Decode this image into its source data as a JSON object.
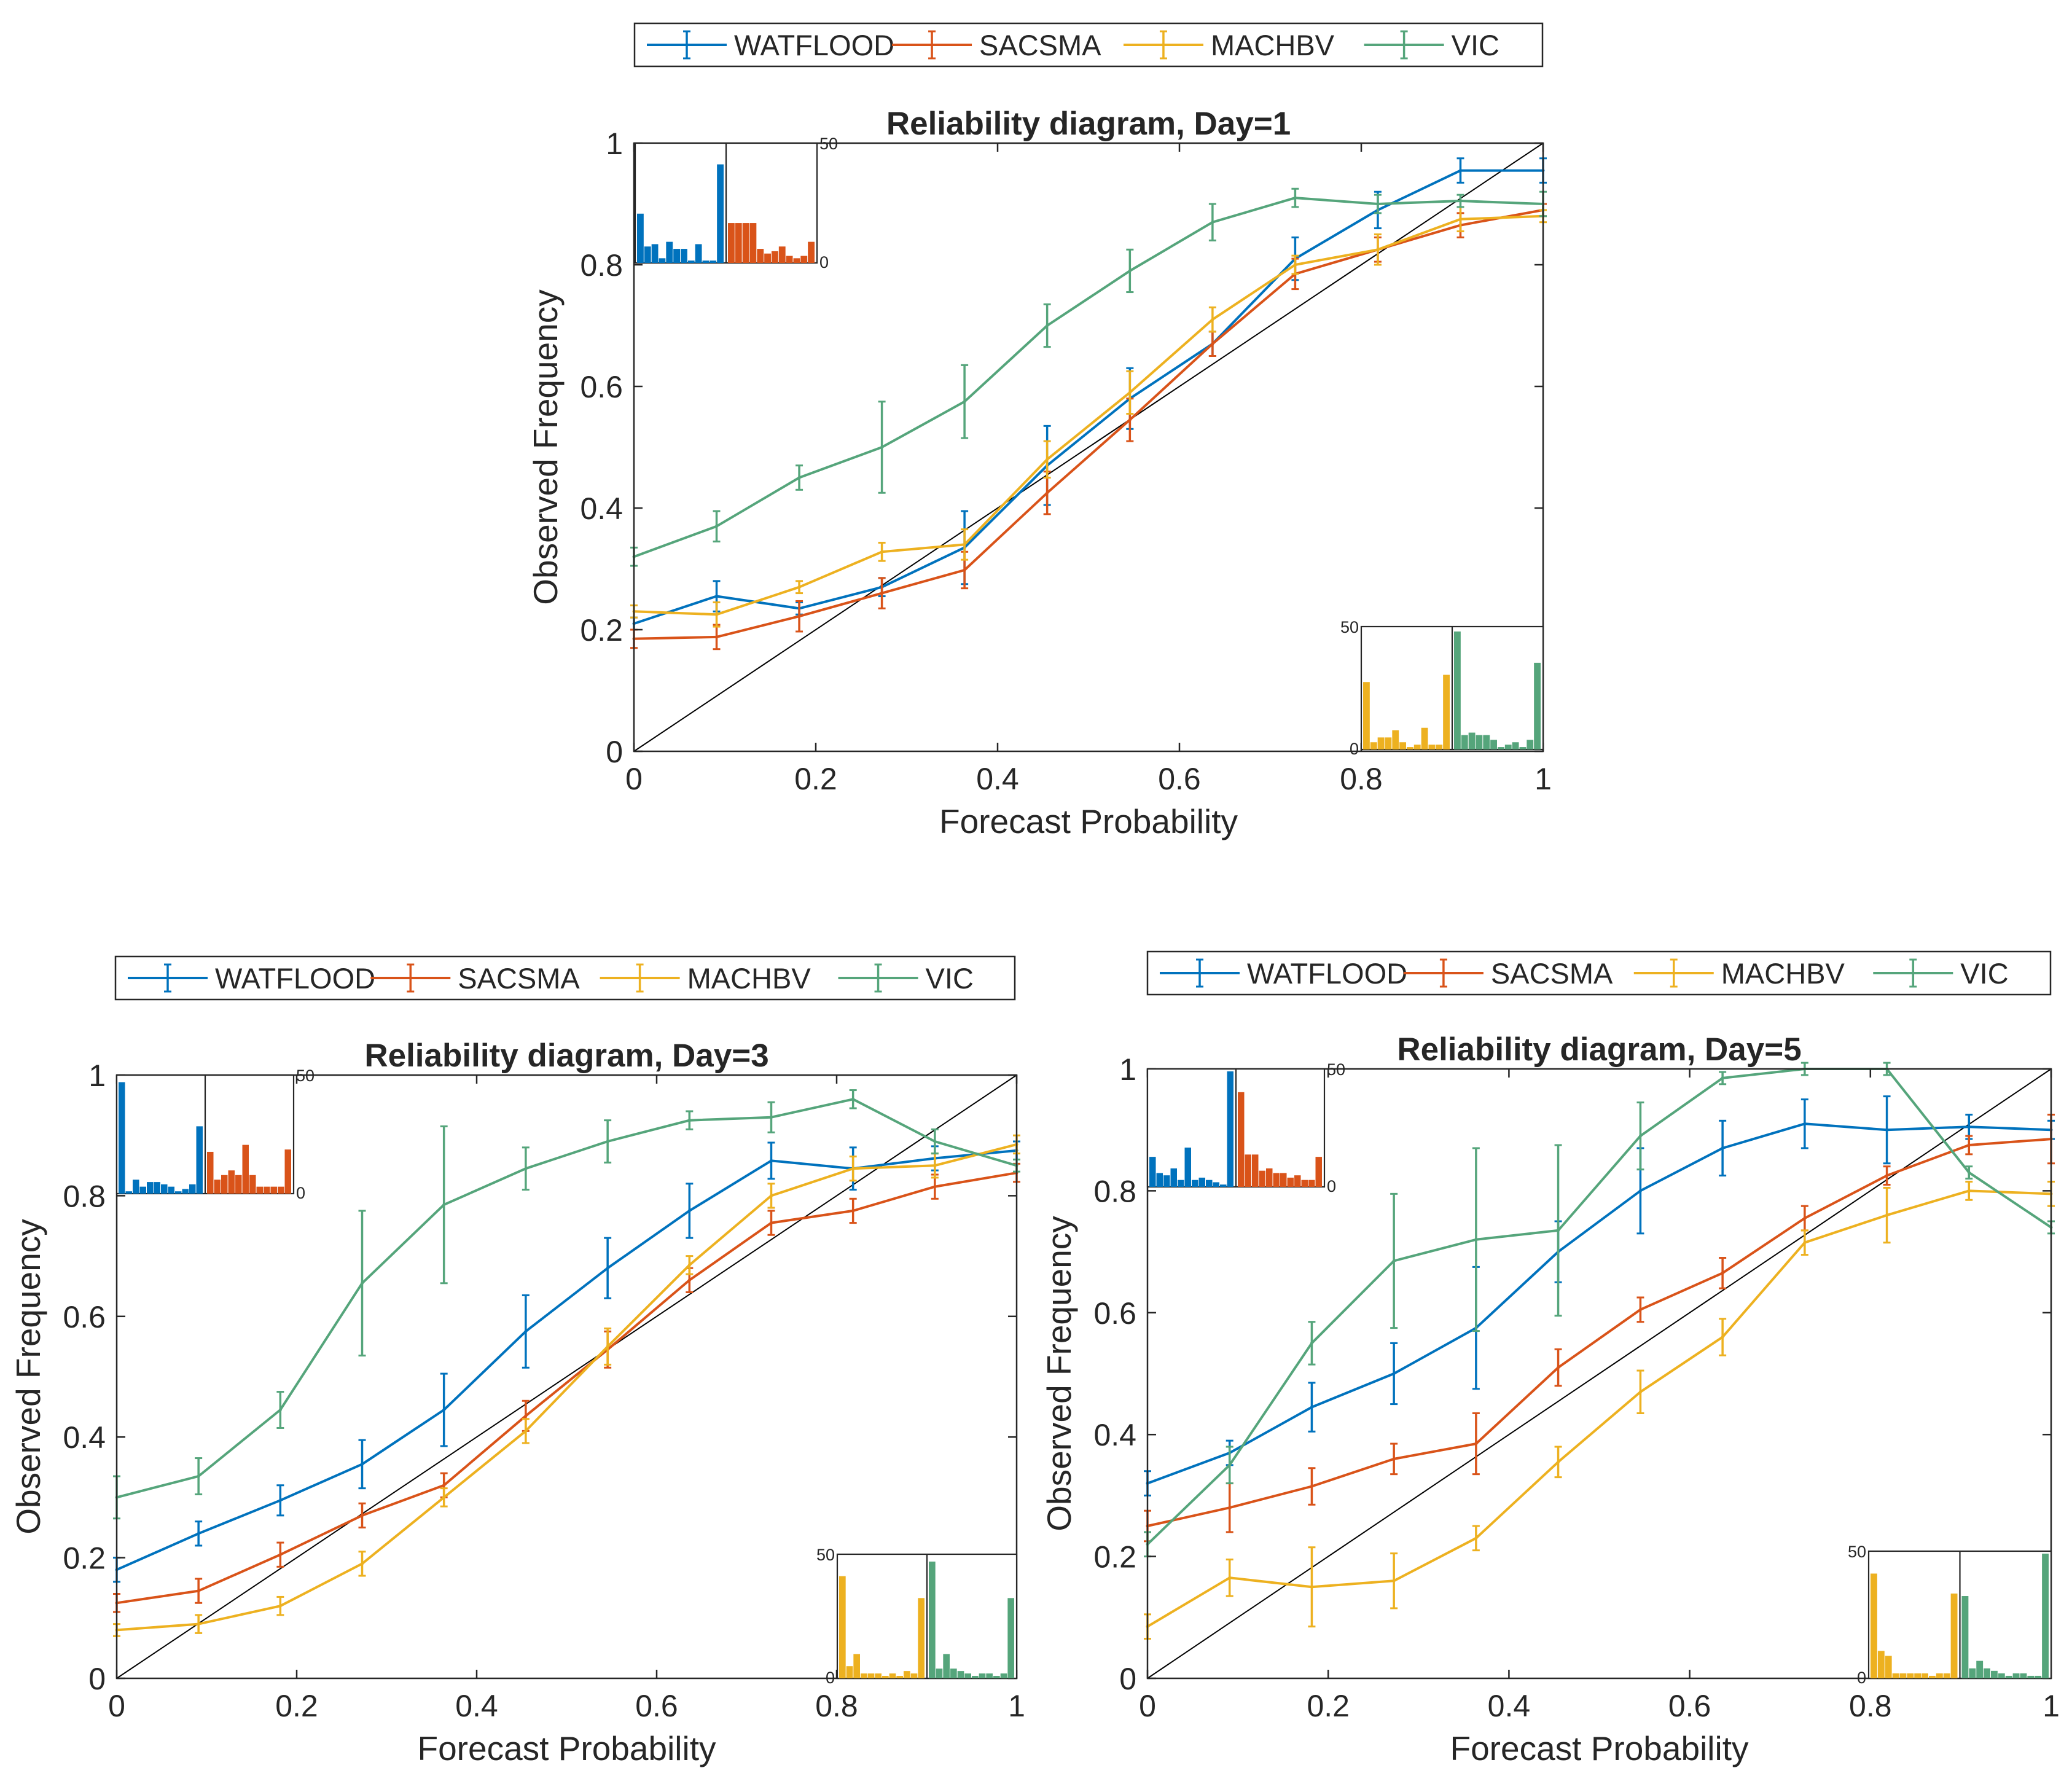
{
  "colors": {
    "WATFLOOD": "#0072BD",
    "SACSMA": "#D95319",
    "MACHBV": "#EDB120",
    "VIC": "#55A57B",
    "diagonal": "#000000"
  },
  "chart_data": [
    {
      "type": "line",
      "title": "Reliability diagram, Day=1",
      "xlabel": "Forecast Probability",
      "ylabel": "Observed Frequency",
      "xlim": [
        0,
        1
      ],
      "ylim": [
        0,
        1
      ],
      "xticks": [
        "0",
        "0.2",
        "0.4",
        "0.6",
        "0.8",
        "1"
      ],
      "yticks": [
        "0",
        "0.2",
        "0.4",
        "0.6",
        "0.8",
        "1"
      ],
      "legend": [
        "WATFLOOD",
        "SACSMA",
        "MACHBV",
        "VIC"
      ],
      "x": [
        0,
        0.0909,
        0.1818,
        0.2727,
        0.3636,
        0.4545,
        0.5455,
        0.6364,
        0.7273,
        0.8182,
        0.9091,
        1.0
      ],
      "series": [
        {
          "name": "WATFLOOD",
          "values": [
            0.21,
            0.255,
            0.235,
            0.27,
            0.335,
            0.47,
            0.58,
            0.67,
            0.81,
            0.89,
            0.955,
            0.955
          ],
          "err": [
            0.01,
            0.025,
            0.01,
            0.015,
            0.06,
            0.065,
            0.05,
            0.02,
            0.035,
            0.03,
            0.02,
            0.02
          ]
        },
        {
          "name": "SACSMA",
          "values": [
            0.185,
            0.188,
            0.222,
            0.26,
            0.298,
            0.425,
            0.545,
            0.67,
            0.785,
            0.825,
            0.865,
            0.89
          ],
          "err": [
            0.015,
            0.02,
            0.025,
            0.025,
            0.03,
            0.035,
            0.035,
            0.02,
            0.025,
            0.02,
            0.02,
            0.01
          ]
        },
        {
          "name": "MACHBV",
          "values": [
            0.23,
            0.225,
            0.27,
            0.328,
            0.34,
            0.48,
            0.59,
            0.71,
            0.8,
            0.825,
            0.875,
            0.88
          ],
          "err": [
            0.01,
            0.02,
            0.01,
            0.015,
            0.025,
            0.03,
            0.035,
            0.02,
            0.015,
            0.025,
            0.02,
            0.01
          ]
        },
        {
          "name": "VIC",
          "values": [
            0.32,
            0.37,
            0.45,
            0.5,
            0.575,
            0.7,
            0.79,
            0.87,
            0.91,
            0.9,
            0.905,
            0.9
          ],
          "err": [
            0.015,
            0.025,
            0.02,
            0.075,
            0.06,
            0.035,
            0.035,
            0.03,
            0.015,
            0.015,
            0.01,
            0.02
          ]
        }
      ],
      "inset_histograms": [
        {
          "name": "WATFLOOD",
          "max": 50,
          "counts": [
            21,
            7,
            8,
            2,
            9,
            6,
            6,
            1,
            8,
            1,
            1,
            42
          ]
        },
        {
          "name": "SACSMA",
          "max": 50,
          "counts": [
            17,
            17,
            17,
            17,
            6,
            4,
            5,
            7,
            3,
            2,
            3,
            9
          ]
        },
        {
          "name": "MACHBV",
          "max": 50,
          "counts": [
            28,
            3,
            5,
            5,
            8,
            3,
            1,
            2,
            9,
            2,
            2,
            31
          ]
        },
        {
          "name": "VIC",
          "max": 50,
          "counts": [
            49,
            6,
            7,
            6,
            6,
            4,
            1,
            2,
            3,
            1,
            4,
            36
          ]
        }
      ]
    },
    {
      "type": "line",
      "title": "Reliability diagram, Day=3",
      "xlabel": "Forecast Probability",
      "ylabel": "Observed Frequency",
      "xlim": [
        0,
        1
      ],
      "ylim": [
        0,
        1
      ],
      "xticks": [
        "0",
        "0.2",
        "0.4",
        "0.6",
        "0.8",
        "1"
      ],
      "yticks": [
        "0",
        "0.2",
        "0.4",
        "0.6",
        "0.8",
        "1"
      ],
      "legend": [
        "WATFLOOD",
        "SACSMA",
        "MACHBV",
        "VIC"
      ],
      "x": [
        0,
        0.0909,
        0.1818,
        0.2727,
        0.3636,
        0.4545,
        0.5455,
        0.6364,
        0.7273,
        0.8182,
        0.9091,
        1.0
      ],
      "series": [
        {
          "name": "WATFLOOD",
          "values": [
            0.18,
            0.24,
            0.295,
            0.355,
            0.445,
            0.575,
            0.68,
            0.775,
            0.858,
            0.845,
            0.862,
            0.875
          ],
          "err": [
            0.02,
            0.02,
            0.025,
            0.04,
            0.06,
            0.06,
            0.05,
            0.045,
            0.03,
            0.035,
            0.02,
            0.015
          ]
        },
        {
          "name": "SACSMA",
          "values": [
            0.125,
            0.145,
            0.205,
            0.27,
            0.32,
            0.435,
            0.545,
            0.66,
            0.755,
            0.775,
            0.815,
            0.838
          ],
          "err": [
            0.015,
            0.02,
            0.02,
            0.02,
            0.02,
            0.025,
            0.03,
            0.02,
            0.02,
            0.02,
            0.02,
            0.015
          ]
        },
        {
          "name": "MACHBV",
          "values": [
            0.08,
            0.09,
            0.12,
            0.19,
            0.3,
            0.41,
            0.55,
            0.685,
            0.8,
            0.845,
            0.85,
            0.885
          ],
          "err": [
            0.01,
            0.015,
            0.015,
            0.02,
            0.015,
            0.02,
            0.03,
            0.015,
            0.02,
            0.02,
            0.02,
            0.015
          ]
        },
        {
          "name": "VIC",
          "values": [
            0.3,
            0.335,
            0.445,
            0.655,
            0.785,
            0.845,
            0.89,
            0.925,
            0.93,
            0.96,
            0.89,
            0.85
          ],
          "err": [
            0.035,
            0.03,
            0.03,
            0.12,
            0.13,
            0.035,
            0.035,
            0.015,
            0.025,
            0.015,
            0.02,
            0.01
          ]
        }
      ],
      "inset_histograms": [
        {
          "name": "WATFLOOD",
          "max": 50,
          "counts": [
            48,
            1,
            6,
            3,
            5,
            5,
            4,
            3,
            1,
            2,
            4,
            29
          ]
        },
        {
          "name": "SACSMA",
          "max": 50,
          "counts": [
            18,
            6,
            8,
            10,
            8,
            21,
            8,
            3,
            3,
            3,
            3,
            19
          ]
        },
        {
          "name": "MACHBV",
          "max": 50,
          "counts": [
            42,
            5,
            10,
            2,
            2,
            2,
            1,
            2,
            1,
            3,
            2,
            33
          ]
        },
        {
          "name": "VIC",
          "max": 50,
          "counts": [
            48,
            4,
            10,
            4,
            3,
            2,
            1,
            2,
            2,
            1,
            2,
            33
          ]
        }
      ]
    },
    {
      "type": "line",
      "title": "Reliability diagram, Day=5",
      "xlabel": "Forecast Probability",
      "ylabel": "Observed Frequency",
      "xlim": [
        0,
        1
      ],
      "ylim": [
        0,
        1
      ],
      "xticks": [
        "0",
        "0.2",
        "0.4",
        "0.6",
        "0.8",
        "1"
      ],
      "yticks": [
        "0",
        "0.2",
        "0.4",
        "0.6",
        "0.8",
        "1"
      ],
      "legend": [
        "WATFLOOD",
        "SACSMA",
        "MACHBV",
        "VIC"
      ],
      "x": [
        0,
        0.0909,
        0.1818,
        0.2727,
        0.3636,
        0.4545,
        0.5455,
        0.6364,
        0.7273,
        0.8182,
        0.9091,
        1.0
      ],
      "series": [
        {
          "name": "WATFLOOD",
          "values": [
            0.32,
            0.37,
            0.445,
            0.5,
            0.575,
            0.7,
            0.8,
            0.87,
            0.91,
            0.9,
            0.905,
            0.9
          ],
          "err": [
            0.02,
            0.02,
            0.04,
            0.05,
            0.1,
            0.05,
            0.07,
            0.045,
            0.04,
            0.055,
            0.02,
            0.015
          ]
        },
        {
          "name": "SACSMA",
          "values": [
            0.25,
            0.28,
            0.315,
            0.36,
            0.385,
            0.51,
            0.605,
            0.665,
            0.755,
            0.825,
            0.875,
            0.885
          ],
          "err": [
            0.025,
            0.04,
            0.03,
            0.025,
            0.05,
            0.03,
            0.02,
            0.025,
            0.02,
            0.015,
            0.015,
            0.04
          ]
        },
        {
          "name": "MACHBV",
          "values": [
            0.085,
            0.165,
            0.15,
            0.16,
            0.23,
            0.355,
            0.47,
            0.56,
            0.715,
            0.76,
            0.8,
            0.795
          ],
          "err": [
            0.02,
            0.03,
            0.065,
            0.045,
            0.02,
            0.025,
            0.035,
            0.03,
            0.02,
            0.045,
            0.015,
            0.02
          ]
        },
        {
          "name": "VIC",
          "values": [
            0.22,
            0.35,
            0.55,
            0.685,
            0.72,
            0.735,
            0.89,
            0.985,
            1.0,
            1.0,
            0.83,
            0.74
          ],
          "err": [
            0.02,
            0.03,
            0.035,
            0.11,
            0.15,
            0.14,
            0.055,
            0.01,
            0.01,
            0.01,
            0.01,
            0.01
          ]
        }
      ],
      "inset_histograms": [
        {
          "name": "WATFLOOD",
          "max": 50,
          "counts": [
            13,
            6,
            5,
            8,
            3,
            17,
            3,
            4,
            3,
            2,
            1,
            50
          ]
        },
        {
          "name": "SACSMA",
          "max": 50,
          "counts": [
            41,
            14,
            14,
            7,
            8,
            6,
            6,
            4,
            5,
            3,
            3,
            13
          ]
        },
        {
          "name": "MACHBV",
          "max": 50,
          "counts": [
            42,
            11,
            9,
            2,
            2,
            2,
            2,
            2,
            1,
            2,
            2,
            34
          ]
        },
        {
          "name": "VIC",
          "max": 50,
          "counts": [
            33,
            4,
            7,
            4,
            3,
            2,
            1,
            2,
            2,
            1,
            1,
            50
          ]
        }
      ]
    }
  ]
}
